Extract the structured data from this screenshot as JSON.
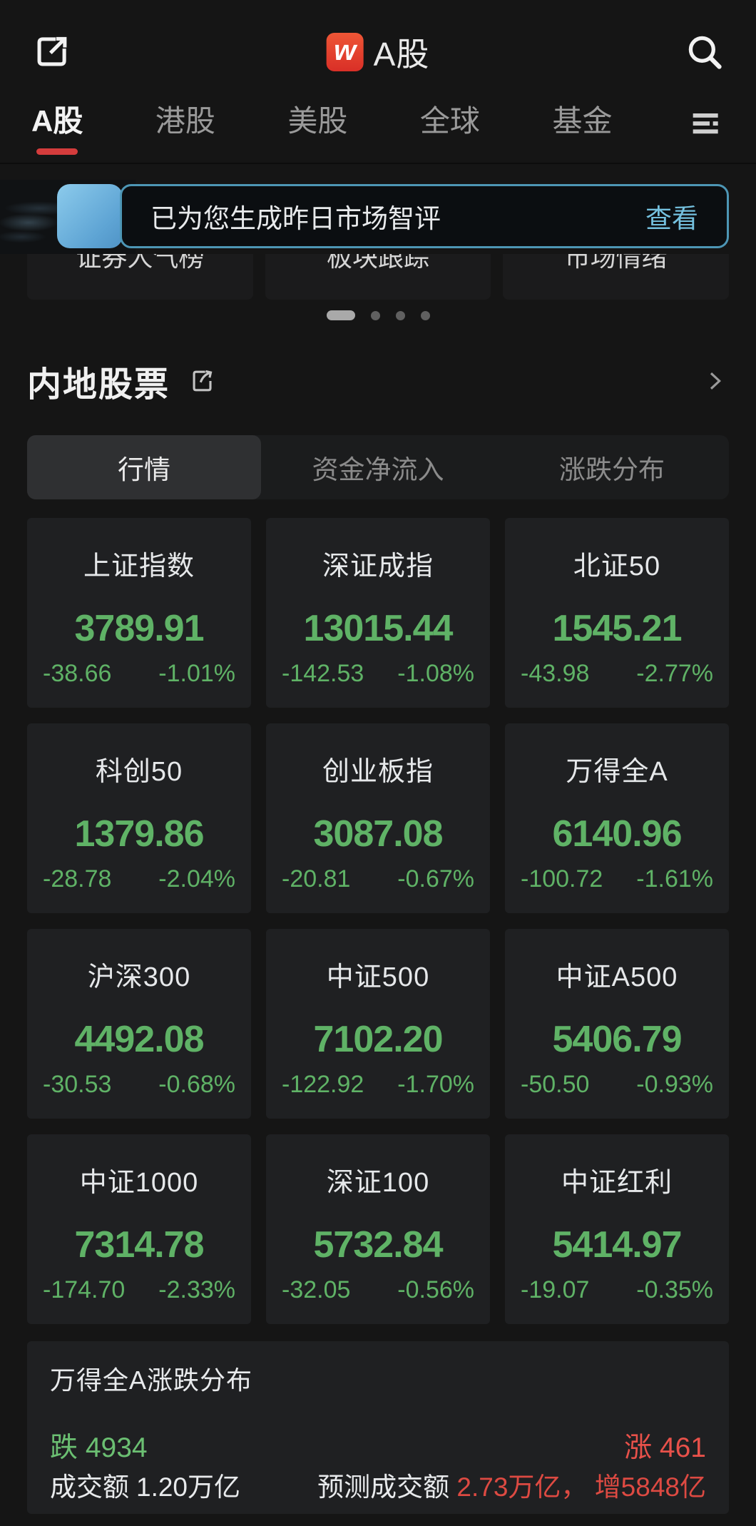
{
  "header": {
    "logo_letter": "w",
    "title": "A股"
  },
  "nav": {
    "tabs": [
      {
        "label": "A股",
        "active": true
      },
      {
        "label": "港股",
        "active": false
      },
      {
        "label": "美股",
        "active": false
      },
      {
        "label": "全球",
        "active": false
      },
      {
        "label": "基金",
        "active": false
      }
    ]
  },
  "banner": {
    "message": "已为您生成昨日市场智评",
    "action_label": "查看"
  },
  "quick_links": [
    {
      "label": "证券人气榜"
    },
    {
      "label": "板块跟踪"
    },
    {
      "label": "市场情绪"
    }
  ],
  "carousel": {
    "page_count": 4,
    "active_index": 0
  },
  "section": {
    "title": "内地股票"
  },
  "view_tabs": [
    {
      "label": "行情",
      "active": true
    },
    {
      "label": "资金净流入",
      "active": false
    },
    {
      "label": "涨跌分布",
      "active": false
    }
  ],
  "indices": [
    {
      "name": "上证指数",
      "value": "3789.91",
      "change": "-38.66",
      "pct": "-1.01%"
    },
    {
      "name": "深证成指",
      "value": "13015.44",
      "change": "-142.53",
      "pct": "-1.08%"
    },
    {
      "name": "北证50",
      "value": "1545.21",
      "change": "-43.98",
      "pct": "-2.77%"
    },
    {
      "name": "科创50",
      "value": "1379.86",
      "change": "-28.78",
      "pct": "-2.04%"
    },
    {
      "name": "创业板指",
      "value": "3087.08",
      "change": "-20.81",
      "pct": "-0.67%"
    },
    {
      "name": "万得全A",
      "value": "6140.96",
      "change": "-100.72",
      "pct": "-1.61%"
    },
    {
      "name": "沪深300",
      "value": "4492.08",
      "change": "-30.53",
      "pct": "-0.68%"
    },
    {
      "name": "中证500",
      "value": "7102.20",
      "change": "-122.92",
      "pct": "-1.70%"
    },
    {
      "name": "中证A500",
      "value": "5406.79",
      "change": "-50.50",
      "pct": "-0.93%"
    },
    {
      "name": "中证1000",
      "value": "7314.78",
      "change": "-174.70",
      "pct": "-2.33%"
    },
    {
      "name": "深证100",
      "value": "5732.84",
      "change": "-32.05",
      "pct": "-0.56%"
    },
    {
      "name": "中证红利",
      "value": "5414.97",
      "change": "-19.07",
      "pct": "-0.35%"
    }
  ],
  "distribution": {
    "title": "万得全A涨跌分布",
    "down_label": "跌",
    "down_count": 4934,
    "up_label": "涨",
    "up_count": 461,
    "turnover_label": "成交额",
    "turnover_value": "1.20万亿",
    "forecast_label": "预测成交额",
    "forecast_value": "2.73万亿，",
    "forecast_extra": "增5848亿"
  },
  "colors": {
    "down_green": "#5fb266",
    "up_red": "#e8514a",
    "banner_cyan": "#74c0de",
    "accent_red": "#d43c3c"
  }
}
